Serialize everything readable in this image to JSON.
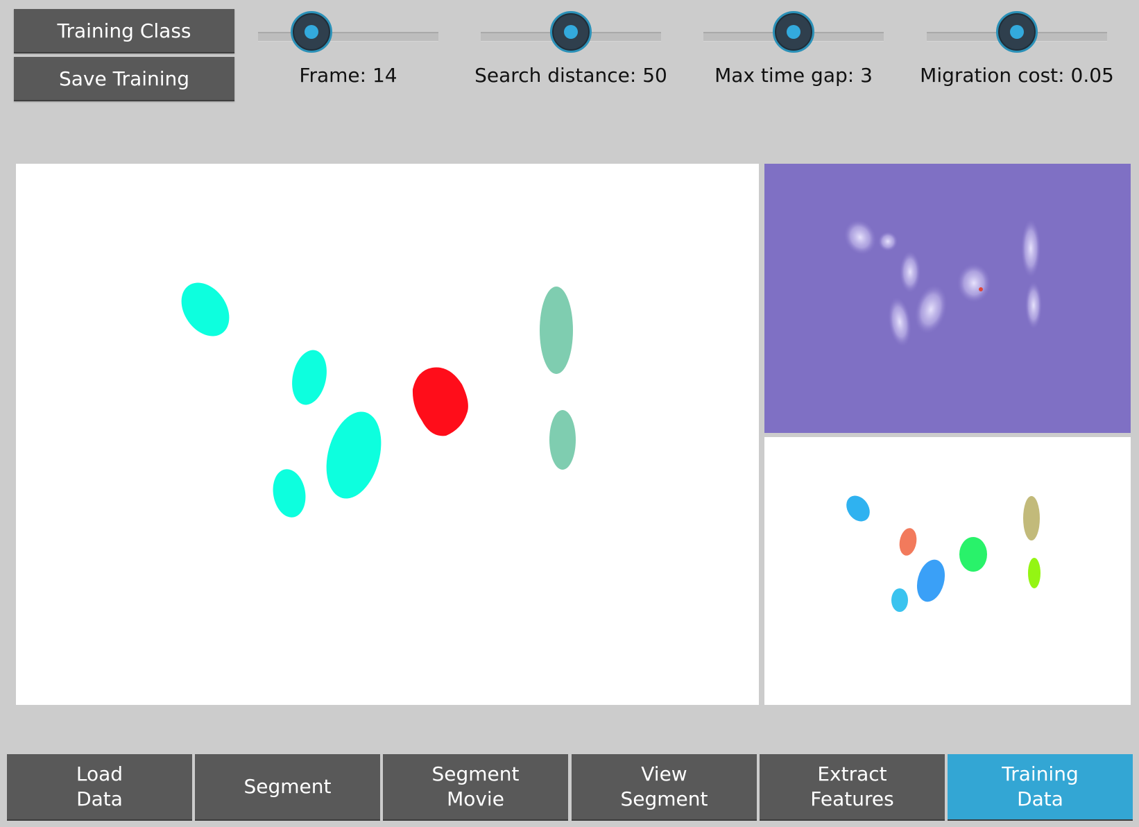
{
  "buttons": {
    "training_class": "Training Class",
    "save_training": "Save Training"
  },
  "sliders": [
    {
      "id": "frame",
      "label": "Frame: 14",
      "value": 0.3
    },
    {
      "id": "search-distance",
      "label": "Search distance: 50",
      "value": 0.5
    },
    {
      "id": "max-time-gap",
      "label": "Max time gap: 3",
      "value": 0.5
    },
    {
      "id": "migration-cost",
      "label": "Migration cost: 0.05",
      "value": 0.5
    }
  ],
  "tabs": [
    {
      "line1": "Load",
      "line2": "Data",
      "active": false
    },
    {
      "line1": "Segment",
      "line2": "",
      "active": false
    },
    {
      "line1": "Segment",
      "line2": "Movie",
      "active": false
    },
    {
      "line1": "View",
      "line2": "Segment",
      "active": false
    },
    {
      "line1": "Extract",
      "line2": "Features",
      "active": false
    },
    {
      "line1": "Training",
      "line2": "Data",
      "active": true
    }
  ],
  "colors": {
    "accent": "#33a6d4",
    "button": "#595959",
    "background": "#cccccc",
    "cell_cyan": "#0dffde",
    "cell_teal": "#7fcdb0",
    "cell_selected": "#ff0d1a",
    "raw_background": "#7f70c4"
  }
}
